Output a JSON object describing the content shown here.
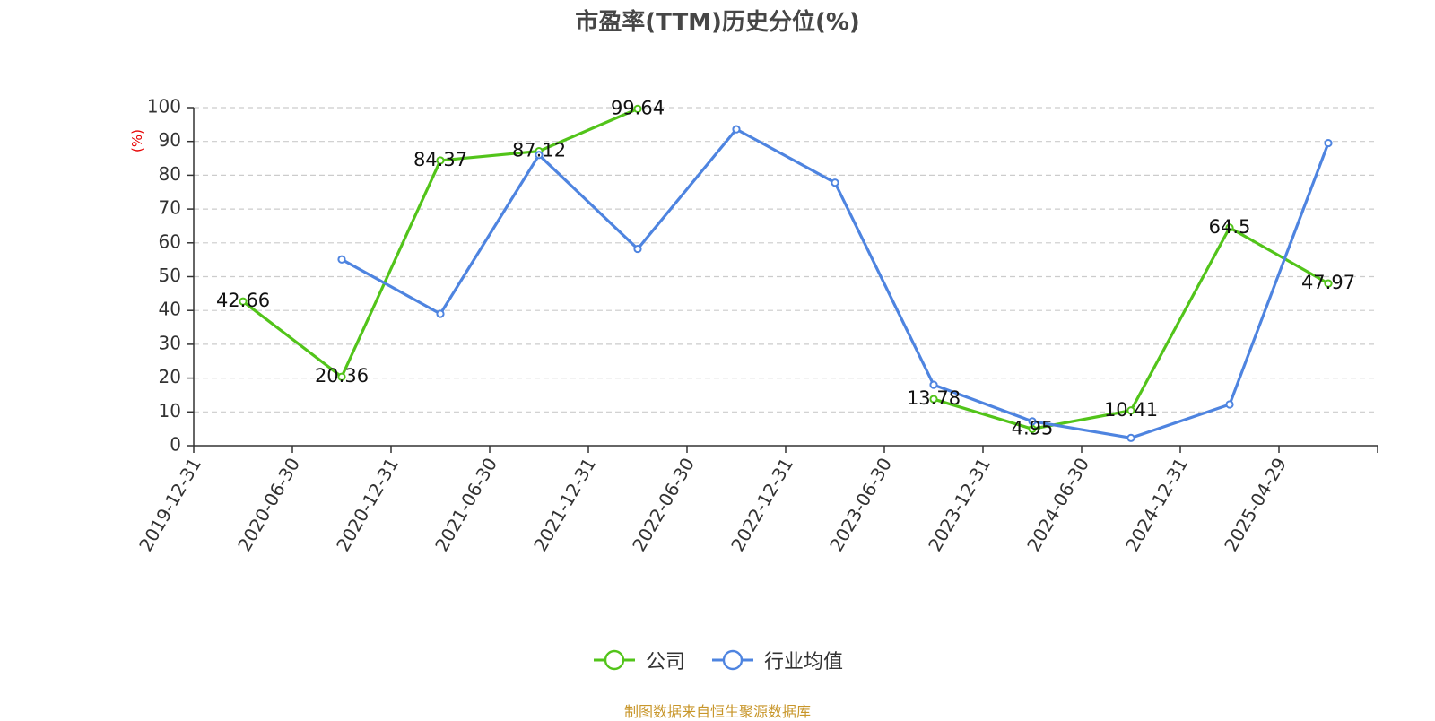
{
  "chart_data": {
    "type": "line",
    "title": "市盈率(TTM)历史分位(%)",
    "ylabel": "(%)",
    "ylim": [
      0,
      100
    ],
    "yticks": [
      0,
      10,
      20,
      30,
      40,
      50,
      60,
      70,
      80,
      90,
      100
    ],
    "grid": true,
    "legend_position": "bottom-center",
    "categories": [
      "2019-12-31",
      "2020-06-30",
      "2020-12-31",
      "2021-06-30",
      "2021-12-31",
      "2022-06-30",
      "2022-12-31",
      "2023-06-30",
      "2023-12-31",
      "2024-06-30",
      "2024-12-31",
      "2025-04-29"
    ],
    "series": [
      {
        "name": "公司",
        "color": "#52c41a",
        "show_labels": true,
        "values": [
          42.66,
          20.36,
          84.37,
          87.12,
          99.64,
          null,
          null,
          13.78,
          4.95,
          10.41,
          64.5,
          47.97
        ]
      },
      {
        "name": "行业均值",
        "color": "#4e84e0",
        "show_labels": false,
        "values": [
          null,
          55.1,
          39.0,
          86.0,
          58.2,
          93.6,
          77.8,
          18.0,
          7.2,
          2.3,
          12.2,
          89.5
        ]
      }
    ]
  },
  "source_note": "制图数据来自恒生聚源数据库"
}
